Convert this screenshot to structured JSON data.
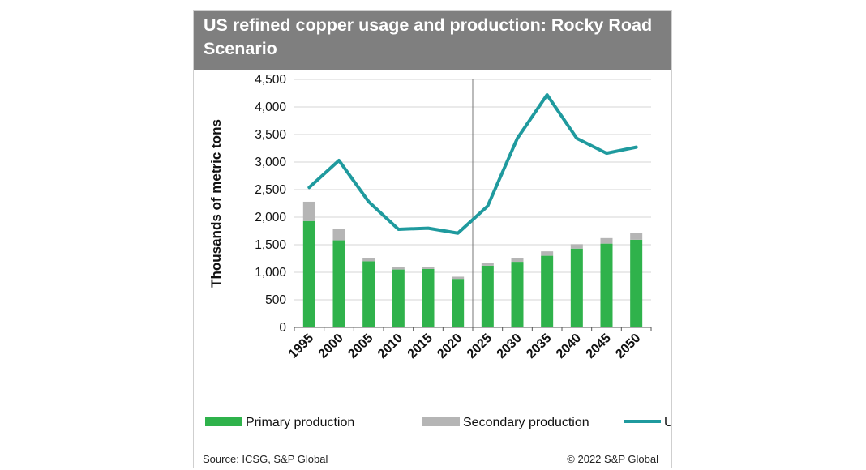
{
  "chart_data": {
    "type": "bar",
    "title": "US refined copper usage and production: Rocky Road Scenario",
    "ylabel": "Thousands of metric tons",
    "xlabel": "",
    "categories": [
      "1995",
      "2000",
      "2005",
      "2010",
      "2015",
      "2020",
      "2025",
      "2030",
      "2035",
      "2040",
      "2045",
      "2050"
    ],
    "ylim": [
      0,
      4500
    ],
    "yticks": [
      "0",
      "500",
      "1,000",
      "1,500",
      "2,000",
      "2,500",
      "3,000",
      "3,500",
      "4,000",
      "4,500"
    ],
    "ytick_values": [
      0,
      500,
      1000,
      1500,
      2000,
      2500,
      3000,
      3500,
      4000,
      4500
    ],
    "stacked": true,
    "grid": true,
    "legend": "bottom",
    "divider_after_category": "2020",
    "series": [
      {
        "name": "Primary production",
        "type": "bar",
        "color": "#2fb24b",
        "values": [
          1930,
          1580,
          1200,
          1050,
          1060,
          880,
          1120,
          1190,
          1300,
          1430,
          1520,
          1590
        ]
      },
      {
        "name": "Secondary production",
        "type": "bar",
        "color": "#b5b5b5",
        "values": [
          350,
          210,
          50,
          40,
          40,
          40,
          50,
          60,
          80,
          80,
          100,
          120
        ]
      },
      {
        "name": "Usage",
        "type": "line",
        "color": "#1f9a9e",
        "values": [
          2540,
          3030,
          2280,
          1780,
          1800,
          1710,
          2200,
          3430,
          4220,
          3430,
          3160,
          3270
        ]
      }
    ]
  },
  "footer": {
    "source": "Source: ICSG, S&P Global",
    "copyright": "© 2022 S&P Global"
  }
}
